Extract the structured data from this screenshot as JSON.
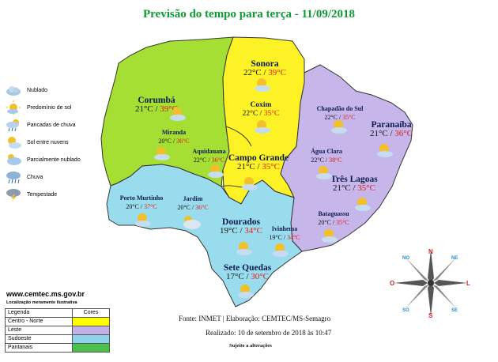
{
  "title": "Previsão do tempo para terça - 11/09/2018",
  "legend": [
    {
      "label": "Nublado",
      "icon": "cloud-icon"
    },
    {
      "label": "Predomínio de sol",
      "icon": "sun-icon"
    },
    {
      "label": "Pancadas de chuva",
      "icon": "rain-showers-icon"
    },
    {
      "label": "Sol entre nuvens",
      "icon": "sun-cloud-icon"
    },
    {
      "label": "Parcialmente nublado",
      "icon": "partly-cloudy-icon"
    },
    {
      "label": "Chuva",
      "icon": "rain-icon"
    },
    {
      "label": "Tempestade",
      "icon": "storm-icon"
    }
  ],
  "cities": [
    {
      "name": "Sonora",
      "min": "22°C",
      "max": "39°C"
    },
    {
      "name": "Corumbá",
      "min": "21°C",
      "max": "39°C"
    },
    {
      "name": "Coxim",
      "min": "22°C",
      "max": "35°C"
    },
    {
      "name": "Chapadão do Sul",
      "min": "22°C",
      "max": "35°C"
    },
    {
      "name": "Paranaíba",
      "min": "21°C",
      "max": "36°C"
    },
    {
      "name": "Miranda",
      "min": "20°C",
      "max": "36°C"
    },
    {
      "name": "Aquidauana",
      "min": "22°C",
      "max": "36°C"
    },
    {
      "name": "Campo Grande",
      "min": "21°C",
      "max": "35°C"
    },
    {
      "name": "Água Clara",
      "min": "22°C",
      "max": "38°C"
    },
    {
      "name": "Três Lagoas",
      "min": "21°C",
      "max": "35°C"
    },
    {
      "name": "Porto Murtinho",
      "min": "20°C",
      "max": "37°C"
    },
    {
      "name": "Jardim",
      "min": "20°C",
      "max": "36°C"
    },
    {
      "name": "Dourados",
      "min": "19°C",
      "max": "34°C"
    },
    {
      "name": "Ivinhema",
      "min": "19°C",
      "max": "34°C"
    },
    {
      "name": "Bataguassu",
      "min": "20°C",
      "max": "35°C"
    },
    {
      "name": "Sete Quedas",
      "min": "17°C",
      "max": "30°C"
    }
  ],
  "website": "www.cemtec.ms.gov.br",
  "note": "Localização meramente ilustrativa",
  "regions_table": {
    "header": [
      "Legenda",
      "Cores"
    ],
    "rows": [
      {
        "label": "Centro - Norte",
        "color": "#ffff00"
      },
      {
        "label": "Leste",
        "color": "#c2b1e8"
      },
      {
        "label": "Sudoeste",
        "color": "#8fd3ea"
      },
      {
        "label": "Pantanais",
        "color": "#4cc04c"
      }
    ]
  },
  "region_colors": {
    "centro_norte": "#fcf225",
    "leste": "#c7b6ea",
    "sudoeste": "#99dcee",
    "pantanais": "#a6df33"
  },
  "footer": {
    "fonte": "Fonte: INMET | Elaboração: CEMTEC/MS-Semagro",
    "realizado": "Realizado: 10 de setembro de 2018 às 10:47",
    "sujeito": "Sujeito a alterações"
  },
  "compass": {
    "N": "N",
    "S": "S",
    "L": "L",
    "O": "O",
    "NE": "NE",
    "NO": "NO",
    "SE": "SE",
    "SO": "SO"
  }
}
